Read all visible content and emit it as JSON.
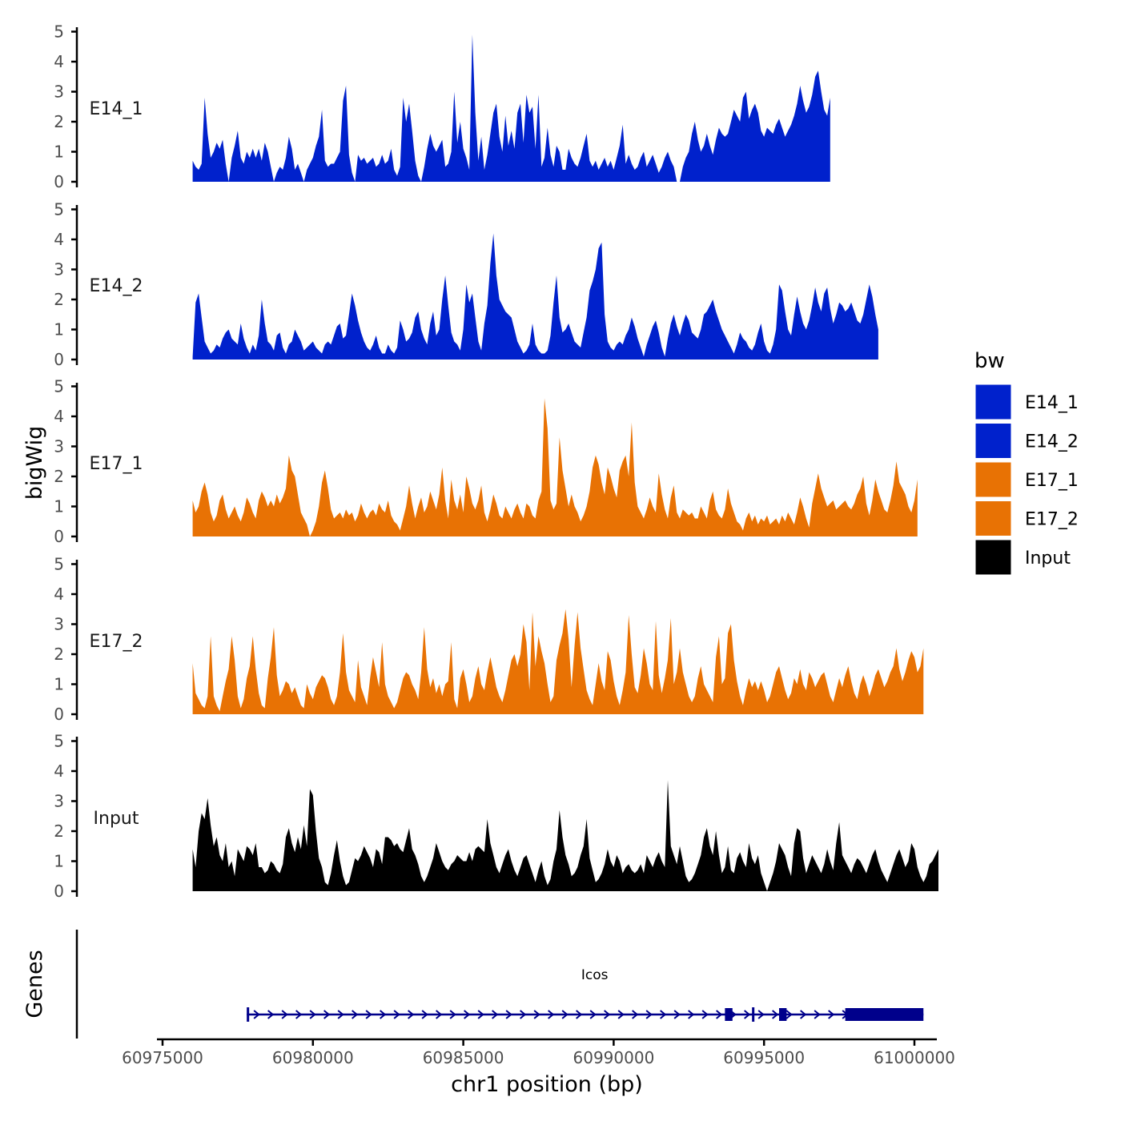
{
  "chart_data": {
    "type": "area",
    "title": "",
    "xlabel": "chr1 position (bp)",
    "ylabel": "bigWig",
    "gene_track_label": "Genes",
    "xlim": [
      60975000,
      61001000
    ],
    "x_ticks": [
      60975000,
      60980000,
      60985000,
      60990000,
      60995000,
      61000000
    ],
    "x_tick_labels": [
      "60975000",
      "60980000",
      "60985000",
      "60990000",
      "60995000",
      "61000000"
    ],
    "ylim": [
      0,
      5
    ],
    "y_ticks": [
      0,
      1,
      2,
      3,
      4,
      5
    ],
    "y_tick_labels": [
      "0",
      "1",
      "2",
      "3",
      "4",
      "5"
    ],
    "x_start": 60976000,
    "x_step": 100,
    "legend": {
      "title": "bw",
      "position": "right",
      "items": [
        {
          "label": "E14_1",
          "color": "#0021CC"
        },
        {
          "label": "E14_2",
          "color": "#0021CC"
        },
        {
          "label": "E17_1",
          "color": "#E87204"
        },
        {
          "label": "E17_2",
          "color": "#E87204"
        },
        {
          "label": "Input",
          "color": "#000000"
        }
      ]
    },
    "series": [
      {
        "name": "E14_1",
        "color": "#0021CC",
        "values": [
          0.7,
          0.5,
          0.4,
          0.6,
          2.8,
          1.6,
          0.8,
          1.0,
          1.3,
          1.1,
          1.4,
          0.6,
          0,
          0.8,
          1.2,
          1.7,
          0.8,
          0.6,
          1.0,
          0.8,
          1.1,
          0.8,
          1.1,
          0.7,
          1.3,
          1.0,
          0.5,
          0,
          0.3,
          0.5,
          0.4,
          0.8,
          1.5,
          1.1,
          0.4,
          0.6,
          0.3,
          0,
          0.4,
          0.6,
          0.8,
          1.2,
          1.5,
          2.4,
          0.7,
          0.5,
          0.6,
          0.6,
          0.8,
          1.0,
          2.7,
          3.2,
          0.9,
          0.3,
          0,
          0.9,
          0.7,
          0.8,
          0.6,
          0.7,
          0.8,
          0.5,
          0.6,
          0.9,
          0.6,
          0.7,
          1.1,
          0.4,
          0.2,
          0.5,
          2.8,
          2.0,
          2.6,
          1.7,
          0.7,
          0.2,
          0,
          0.5,
          1.1,
          1.6,
          1.2,
          1.0,
          1.2,
          1.4,
          0.5,
          0.6,
          1.0,
          3.0,
          1.3,
          2.0,
          1.1,
          0.8,
          0.4,
          4.9,
          2.3,
          0.7,
          1.5,
          0.4,
          0.9,
          1.6,
          2.3,
          2.6,
          1.5,
          1.0,
          2.2,
          1.2,
          1.7,
          1.1,
          2.3,
          2.6,
          1.3,
          2.9,
          2.3,
          2.5,
          1.1,
          2.9,
          0.5,
          0.8,
          1.8,
          0.9,
          0.5,
          1.2,
          1.0,
          0.4,
          0.4,
          1.1,
          0.8,
          0.6,
          0.5,
          0.8,
          1.2,
          1.6,
          0.7,
          0.5,
          0.7,
          0.4,
          0.6,
          0.8,
          0.5,
          0.7,
          0.4,
          0.8,
          1.2,
          1.9,
          0.6,
          0.9,
          0.6,
          0.4,
          0.5,
          0.8,
          1.0,
          0.5,
          0.7,
          0.9,
          0.6,
          0.3,
          0.5,
          0.8,
          1.0,
          0.7,
          0.5,
          0,
          0,
          0.5,
          0.8,
          1.0,
          1.6,
          2.0,
          1.4,
          1.0,
          1.2,
          1.6,
          1.2,
          0.9,
          1.4,
          1.8,
          1.6,
          1.5,
          1.6,
          2.0,
          2.4,
          2.2,
          2.0,
          2.8,
          3.0,
          2.1,
          2.4,
          2.6,
          2.3,
          1.7,
          1.5,
          1.8,
          1.7,
          1.6,
          1.9,
          2.1,
          1.8,
          1.5,
          1.7,
          1.9,
          2.2,
          2.6,
          3.2,
          2.7,
          2.3,
          2.5,
          2.9,
          3.5,
          3.7,
          3.0,
          2.4,
          2.2,
          2.8
        ]
      },
      {
        "name": "E14_2",
        "color": "#0021CC",
        "values": [
          0.1,
          1.9,
          2.2,
          1.4,
          0.6,
          0.4,
          0.2,
          0.3,
          0.5,
          0.4,
          0.7,
          0.9,
          1.0,
          0.7,
          0.6,
          0.5,
          1.2,
          0.7,
          0.4,
          0.2,
          0.5,
          0.3,
          0.8,
          2.0,
          1.2,
          0.6,
          0.5,
          0.3,
          0.8,
          0.9,
          0.4,
          0.2,
          0.5,
          0.6,
          1.0,
          0.8,
          0.6,
          0.3,
          0.4,
          0.5,
          0.6,
          0.4,
          0.3,
          0.2,
          0.5,
          0.6,
          0.5,
          0.8,
          1.1,
          1.2,
          0.7,
          0.8,
          1.5,
          2.2,
          1.8,
          1.3,
          0.9,
          0.6,
          0.4,
          0.3,
          0.5,
          0.8,
          0.4,
          0.2,
          0.2,
          0.5,
          0.3,
          0.2,
          0.4,
          1.3,
          1.0,
          0.6,
          0.7,
          0.9,
          1.4,
          1.6,
          1.0,
          0.7,
          0.5,
          1.2,
          1.6,
          0.8,
          1.0,
          2.0,
          2.8,
          1.8,
          0.9,
          0.6,
          0.5,
          0.3,
          1.0,
          2.5,
          1.9,
          2.2,
          1.4,
          0.6,
          0.3,
          1.2,
          1.8,
          3.2,
          4.2,
          2.8,
          2.0,
          1.8,
          1.6,
          1.5,
          1.4,
          1.0,
          0.6,
          0.4,
          0.2,
          0.3,
          0.5,
          1.2,
          0.5,
          0.3,
          0.2,
          0.2,
          0.3,
          0.8,
          1.9,
          2.8,
          1.4,
          0.9,
          1.0,
          1.2,
          0.9,
          0.6,
          0.5,
          0.4,
          0.9,
          1.4,
          2.3,
          2.6,
          3.0,
          3.7,
          3.9,
          1.5,
          0.6,
          0.4,
          0.3,
          0.5,
          0.6,
          0.5,
          0.8,
          1.0,
          1.4,
          1.1,
          0.7,
          0.4,
          0.1,
          0.5,
          0.8,
          1.1,
          1.3,
          0.9,
          0.4,
          0.1,
          0.7,
          1.2,
          1.5,
          1.1,
          0.8,
          1.2,
          1.5,
          1.3,
          0.9,
          0.8,
          0.7,
          1.0,
          1.5,
          1.6,
          1.8,
          2.0,
          1.6,
          1.3,
          1.0,
          0.8,
          0.6,
          0.4,
          0.2,
          0.5,
          0.9,
          0.7,
          0.6,
          0.4,
          0.3,
          0.5,
          0.9,
          1.2,
          0.6,
          0.3,
          0.2,
          0.5,
          1.0,
          2.5,
          2.3,
          1.6,
          1.0,
          0.8,
          1.5,
          2.1,
          1.6,
          1.2,
          1.0,
          1.3,
          1.8,
          2.4,
          1.9,
          1.6,
          2.2,
          2.4,
          1.7,
          1.2,
          1.5,
          1.9,
          1.8,
          1.6,
          1.7,
          1.9,
          1.6,
          1.3,
          1.2,
          1.5,
          2.0,
          2.5,
          2.1,
          1.5,
          1.0
        ]
      },
      {
        "name": "E17_1",
        "color": "#E87204",
        "values": [
          1.2,
          0.8,
          1.0,
          1.5,
          1.8,
          1.4,
          0.8,
          0.5,
          0.7,
          1.2,
          1.4,
          0.9,
          0.6,
          0.8,
          1.0,
          0.7,
          0.5,
          0.8,
          1.3,
          1.1,
          0.8,
          0.6,
          1.2,
          1.5,
          1.3,
          1.0,
          1.2,
          1.0,
          1.4,
          1.1,
          1.3,
          1.6,
          2.7,
          2.2,
          2.0,
          1.4,
          0.8,
          0.6,
          0.4,
          0,
          0.2,
          0.5,
          1.0,
          1.8,
          2.2,
          1.6,
          0.9,
          0.6,
          0.7,
          0.8,
          0.6,
          0.9,
          0.7,
          0.8,
          0.5,
          0.7,
          1.1,
          0.8,
          0.6,
          0.8,
          0.9,
          0.7,
          1.1,
          0.9,
          0.8,
          1.2,
          0.7,
          0.5,
          0.4,
          0.2,
          0.6,
          1.0,
          1.7,
          1.1,
          0.6,
          1.0,
          1.3,
          0.8,
          1.0,
          1.5,
          1.2,
          0.9,
          1.4,
          2.3,
          1.2,
          0.6,
          1.9,
          1.2,
          0.9,
          1.4,
          0.8,
          2.0,
          1.6,
          1.1,
          0.9,
          1.2,
          1.7,
          0.8,
          0.5,
          0.9,
          1.4,
          1.1,
          0.7,
          0.6,
          1.0,
          0.8,
          0.6,
          0.9,
          1.1,
          0.8,
          0.6,
          1.1,
          1.0,
          0.7,
          0.6,
          1.2,
          1.5,
          4.6,
          3.6,
          1.2,
          0.9,
          1.1,
          3.3,
          2.2,
          1.6,
          1.0,
          1.4,
          1.0,
          0.8,
          0.5,
          0.7,
          1.0,
          1.5,
          2.3,
          2.7,
          2.4,
          1.8,
          1.4,
          2.3,
          2.0,
          1.6,
          1.3,
          2.2,
          2.5,
          2.7,
          2.0,
          3.8,
          1.8,
          1.0,
          0.8,
          0.6,
          0.9,
          1.3,
          1.0,
          0.8,
          2.1,
          1.4,
          0.9,
          0.6,
          1.3,
          1.7,
          0.8,
          0.6,
          0.9,
          0.8,
          0.7,
          0.8,
          0.6,
          0.6,
          1.0,
          0.8,
          0.6,
          1.2,
          1.5,
          0.9,
          0.7,
          0.6,
          0.9,
          1.6,
          1.1,
          0.8,
          0.5,
          0.4,
          0.2,
          0.6,
          0.8,
          0.5,
          0.7,
          0.4,
          0.6,
          0.5,
          0.7,
          0.4,
          0.5,
          0.6,
          0.4,
          0.7,
          0.5,
          0.8,
          0.6,
          0.4,
          0.8,
          1.3,
          1.0,
          0.6,
          0.3,
          1.1,
          1.6,
          2.1,
          1.6,
          1.3,
          1.0,
          1.1,
          1.2,
          0.9,
          1.0,
          1.1,
          1.2,
          1.0,
          0.9,
          1.1,
          1.4,
          1.6,
          2.0,
          1.1,
          0.7,
          1.2,
          1.9,
          1.5,
          1.2,
          0.9,
          0.8,
          1.2,
          1.7,
          2.5,
          1.8,
          1.6,
          1.4,
          1.0,
          0.8,
          1.2,
          1.9
        ]
      },
      {
        "name": "E17_2",
        "color": "#E87204",
        "values": [
          1.7,
          0.7,
          0.5,
          0.3,
          0.2,
          0.6,
          2.6,
          0.6,
          0.3,
          0.1,
          0.6,
          1.1,
          1.5,
          2.6,
          1.8,
          0.6,
          0.2,
          0.5,
          1.2,
          1.6,
          2.6,
          1.5,
          0.7,
          0.3,
          0.2,
          1.2,
          1.9,
          2.9,
          1.3,
          0.6,
          0.8,
          1.1,
          1.0,
          0.7,
          0.9,
          0.6,
          0.3,
          0.2,
          1.0,
          0.7,
          0.5,
          0.9,
          1.1,
          1.3,
          1.2,
          0.9,
          0.5,
          0.3,
          0.6,
          1.4,
          2.7,
          1.4,
          0.8,
          0.6,
          0.4,
          1.8,
          0.9,
          0.6,
          0.3,
          1.2,
          1.9,
          1.4,
          0.9,
          2.4,
          1.0,
          0.6,
          0.4,
          0.2,
          0.4,
          0.8,
          1.2,
          1.4,
          1.3,
          1.0,
          0.8,
          0.5,
          1.4,
          2.9,
          1.5,
          0.9,
          1.2,
          0.7,
          1.0,
          0.6,
          1.0,
          1.1,
          2.4,
          0.5,
          0.2,
          1.2,
          1.5,
          1.0,
          0.4,
          0.6,
          1.2,
          1.6,
          1.0,
          0.8,
          1.4,
          1.9,
          1.4,
          0.9,
          0.6,
          0.4,
          0.8,
          1.3,
          1.8,
          2.0,
          1.6,
          2.0,
          3.0,
          2.4,
          0.8,
          3.4,
          1.6,
          2.6,
          2.1,
          1.7,
          1.0,
          0.4,
          0.6,
          1.8,
          2.3,
          2.7,
          3.5,
          2.5,
          0.9,
          2.3,
          3.4,
          2.2,
          1.5,
          0.8,
          0.5,
          0.3,
          1.0,
          1.7,
          1.1,
          0.8,
          2.1,
          1.8,
          1.1,
          0.6,
          0.3,
          0.8,
          1.4,
          3.3,
          2.0,
          0.9,
          0.7,
          1.3,
          2.2,
          1.7,
          1.0,
          0.8,
          3.1,
          1.3,
          0.7,
          1.2,
          1.8,
          3.2,
          1.0,
          1.4,
          2.2,
          1.4,
          1.0,
          0.6,
          0.4,
          0.6,
          1.2,
          1.6,
          1.0,
          0.8,
          0.6,
          0.4,
          1.9,
          2.6,
          1.0,
          1.2,
          2.7,
          3.0,
          1.8,
          1.1,
          0.6,
          0.3,
          0.8,
          1.2,
          0.9,
          1.1,
          0.8,
          1.1,
          0.8,
          0.4,
          0.6,
          1.0,
          1.4,
          1.6,
          1.2,
          0.8,
          0.5,
          0.7,
          1.2,
          1.0,
          1.5,
          1.0,
          0.8,
          1.4,
          1.2,
          0.9,
          1.1,
          1.3,
          1.4,
          1.0,
          0.6,
          0.4,
          0.8,
          1.2,
          0.9,
          1.3,
          1.6,
          1.1,
          0.7,
          0.5,
          1.0,
          1.3,
          1.0,
          0.6,
          0.9,
          1.3,
          1.5,
          1.2,
          0.9,
          1.1,
          1.4,
          1.6,
          2.2,
          1.5,
          1.1,
          1.4,
          1.8,
          2.1,
          1.9,
          1.4,
          1.6,
          2.2
        ]
      },
      {
        "name": "Input",
        "color": "#000000",
        "values": [
          1.4,
          0.8,
          2.0,
          2.6,
          2.4,
          3.1,
          2.2,
          1.5,
          1.8,
          1.2,
          1.0,
          1.6,
          0.8,
          1.0,
          0.5,
          1.4,
          1.2,
          1.0,
          1.5,
          1.4,
          1.2,
          1.6,
          0.8,
          0.8,
          0.6,
          0.7,
          1.0,
          0.9,
          0.7,
          0.6,
          0.9,
          1.8,
          2.1,
          1.6,
          1.3,
          1.8,
          1.4,
          2.2,
          1.5,
          3.4,
          3.2,
          2.0,
          1.1,
          0.8,
          0.3,
          0.2,
          0.6,
          1.2,
          1.7,
          1.0,
          0.5,
          0.2,
          0.3,
          0.7,
          1.1,
          1.0,
          1.2,
          1.5,
          1.3,
          1.1,
          0.8,
          1.4,
          1.3,
          0.9,
          1.8,
          1.8,
          1.7,
          1.5,
          1.6,
          1.4,
          1.3,
          1.7,
          2.1,
          1.4,
          1.2,
          0.9,
          0.5,
          0.3,
          0.5,
          0.8,
          1.1,
          1.6,
          1.3,
          1.0,
          0.8,
          0.7,
          0.9,
          1.0,
          1.2,
          1.1,
          1.0,
          1.0,
          1.3,
          1.0,
          1.4,
          1.5,
          1.4,
          1.3,
          2.4,
          1.6,
          1.2,
          0.8,
          0.6,
          0.9,
          1.2,
          1.4,
          1.0,
          0.7,
          0.5,
          0.8,
          1.1,
          1.2,
          0.9,
          0.6,
          0.3,
          0.7,
          1.0,
          0.5,
          0.2,
          0.4,
          1.0,
          1.4,
          2.7,
          1.8,
          1.2,
          0.9,
          0.5,
          0.6,
          0.8,
          1.2,
          1.5,
          2.4,
          1.1,
          0.7,
          0.3,
          0.4,
          0.6,
          0.9,
          1.4,
          1.0,
          0.8,
          1.2,
          1.0,
          0.6,
          0.8,
          0.9,
          0.7,
          0.6,
          0.7,
          0.9,
          0.6,
          1.2,
          1.0,
          0.8,
          1.1,
          1.3,
          1.0,
          0.8,
          3.7,
          1.5,
          1.2,
          0.9,
          1.5,
          1.0,
          0.5,
          0.3,
          0.4,
          0.6,
          0.9,
          1.2,
          1.8,
          2.1,
          1.5,
          1.2,
          2.0,
          1.2,
          0.6,
          0.8,
          1.5,
          0.7,
          0.6,
          1.1,
          1.3,
          1.0,
          0.8,
          1.6,
          1.1,
          0.9,
          1.2,
          0.6,
          0.3,
          0,
          0.3,
          0.6,
          1.0,
          1.6,
          1.4,
          1.2,
          0.8,
          0.5,
          1.6,
          2.1,
          2.0,
          1.1,
          0.6,
          0.9,
          1.2,
          1.0,
          0.8,
          0.6,
          0.9,
          1.4,
          1.0,
          0.7,
          1.6,
          2.3,
          1.2,
          1.0,
          0.8,
          0.6,
          0.9,
          1.1,
          1.0,
          0.8,
          0.6,
          0.9,
          1.2,
          1.4,
          1.0,
          0.7,
          0.5,
          0.3,
          0.6,
          0.9,
          1.2,
          1.4,
          1.1,
          0.8,
          1.0,
          1.6,
          1.4,
          0.8,
          0.5,
          0.3,
          0.5,
          0.9,
          1.0,
          1.2,
          1.4
        ]
      }
    ],
    "genes": [
      {
        "name": "Icos",
        "strand": "+",
        "start": 60977800,
        "end": 61000300,
        "color": "#00008B",
        "exons": [
          [
            60977800,
            60977850
          ],
          [
            60993700,
            60993950
          ],
          [
            60994600,
            60994650
          ],
          [
            60995500,
            60995750
          ],
          [
            60997700,
            61000300
          ]
        ]
      }
    ]
  }
}
